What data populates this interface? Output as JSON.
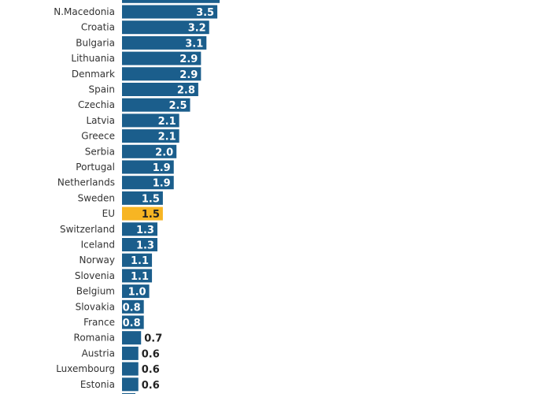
{
  "chart_data": {
    "type": "bar",
    "orientation": "horizontal",
    "categories": [
      "N.Macedonia",
      "Croatia",
      "Bulgaria",
      "Lithuania",
      "Denmark",
      "Spain",
      "Czechia",
      "Latvia",
      "Greece",
      "Serbia",
      "Portugal",
      "Netherlands",
      "Sweden",
      "EU",
      "Switzerland",
      "Iceland",
      "Norway",
      "Slovenia",
      "Belgium",
      "Slovakia",
      "France",
      "Romania",
      "Austria",
      "Luxembourg",
      "Estonia"
    ],
    "values": [
      3.5,
      3.2,
      3.1,
      2.9,
      2.9,
      2.8,
      2.5,
      2.1,
      2.1,
      2.0,
      1.9,
      1.9,
      1.5,
      1.5,
      1.3,
      1.3,
      1.1,
      1.1,
      1.0,
      0.8,
      0.8,
      0.7,
      0.6,
      0.6,
      0.6
    ],
    "value_labels": [
      "3.5",
      "3.2",
      "3.1",
      "2.9",
      "2.9",
      "2.8",
      "2.5",
      "2.1",
      "2.1",
      "2.0",
      "1.9",
      "1.9",
      "1.5",
      "1.5",
      "1.3",
      "1.3",
      "1.1",
      "1.1",
      "1.0",
      "0.8",
      "0.8",
      "0.7",
      "0.6",
      "0.6",
      "0.6"
    ],
    "highlight": "EU",
    "colors": {
      "bar": "#1b5e8c",
      "highlight": "#f7b523",
      "label_inside": "#ffffff",
      "label_outside": "#222222",
      "category_text": "#333333"
    },
    "grid": false
  }
}
